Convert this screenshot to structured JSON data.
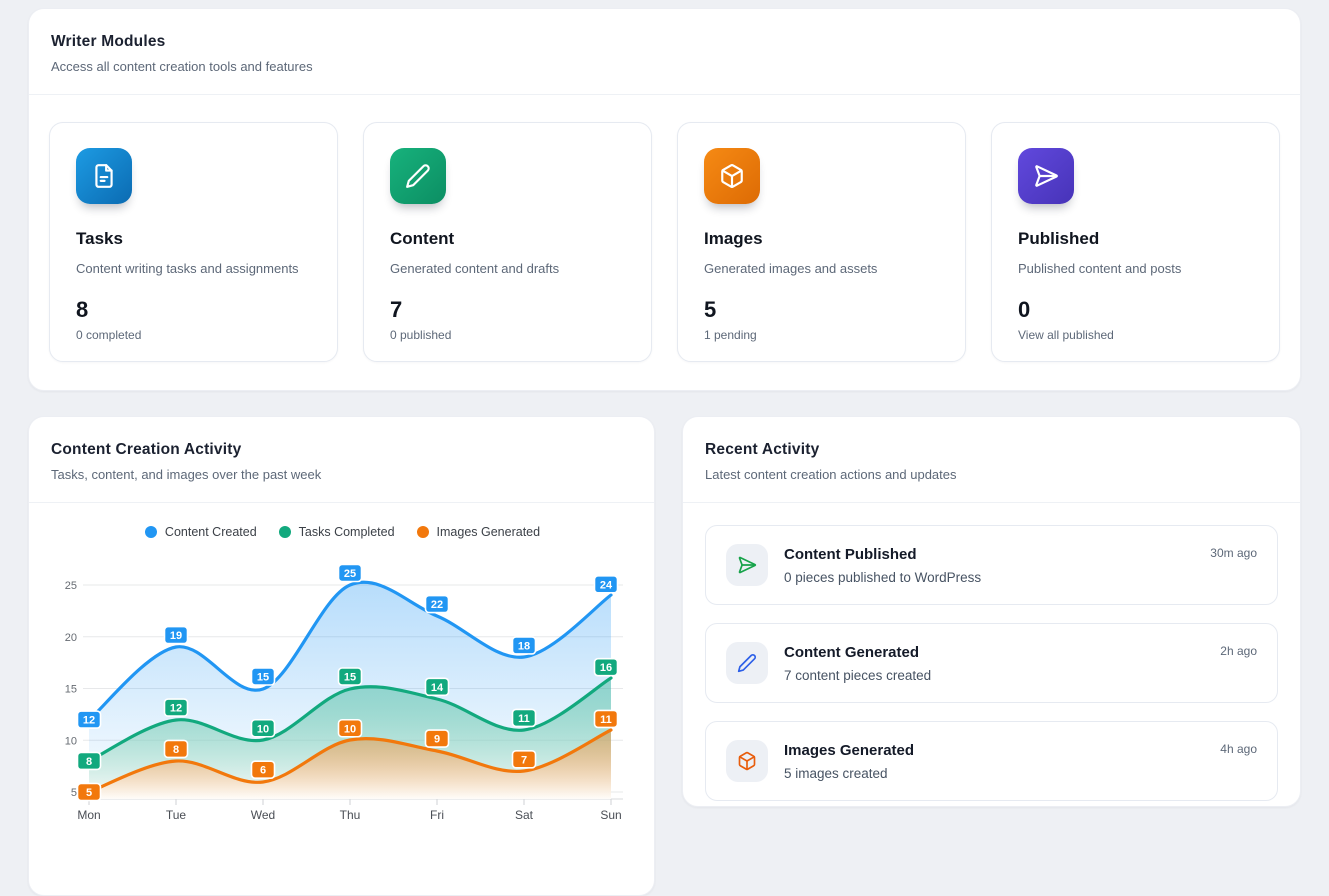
{
  "theme": {
    "page_bg": "#eef0f4",
    "card_bg": "#ffffff",
    "title_color": "#1b2130",
    "muted_color": "#5d6878"
  },
  "writer_modules": {
    "title": "Writer Modules",
    "subtitle": "Access all content creation tools and features",
    "cards": [
      {
        "icon": "file-text-icon",
        "gradient_from": "#1d9be3",
        "gradient_to": "#0b6bb2",
        "title": "Tasks",
        "description": "Content writing tasks and assignments",
        "value": "8",
        "footnote": "0 completed"
      },
      {
        "icon": "pencil-icon",
        "gradient_from": "#17b27c",
        "gradient_to": "#0c8e63",
        "title": "Content",
        "description": "Generated content and drafts",
        "value": "7",
        "footnote": "0 published"
      },
      {
        "icon": "cube-icon",
        "gradient_from": "#f68a14",
        "gradient_to": "#dd6b04",
        "title": "Images",
        "description": "Generated images and assets",
        "value": "5",
        "footnote": "1 pending"
      },
      {
        "icon": "send-icon",
        "gradient_from": "#6149dd",
        "gradient_to": "#4733b8",
        "title": "Published",
        "description": "Published content and posts",
        "value": "0",
        "footnote": "View all published"
      }
    ]
  },
  "content_activity": {
    "title": "Content Creation Activity",
    "subtitle": "Tasks, content, and images over the past week",
    "chart_data": {
      "type": "line",
      "x": [
        "Mon",
        "Tue",
        "Wed",
        "Thu",
        "Fri",
        "Sat",
        "Sun"
      ],
      "series": [
        {
          "name": "Content Created",
          "color": "#2196f3",
          "values": [
            12,
            19,
            15,
            25,
            22,
            18,
            24
          ]
        },
        {
          "name": "Tasks Completed",
          "color": "#12a97e",
          "values": [
            8,
            12,
            10,
            15,
            14,
            11,
            16
          ]
        },
        {
          "name": "Images Generated",
          "color": "#f2780c",
          "values": [
            5,
            8,
            6,
            10,
            9,
            7,
            11
          ]
        }
      ],
      "y_ticks": [
        5,
        10,
        15,
        20,
        25
      ],
      "ylim": [
        5,
        25
      ],
      "grid": true,
      "legend_position": "top",
      "smooth": true,
      "area": true,
      "point_labels": true
    }
  },
  "recent_activity": {
    "title": "Recent Activity",
    "subtitle": "Latest content creation actions and updates",
    "items": [
      {
        "icon": "send-icon",
        "icon_color": "#17a34a",
        "title": "Content Published",
        "description": "0 pieces published to WordPress",
        "time": "30m ago"
      },
      {
        "icon": "pencil-icon",
        "icon_color": "#2c5fe8",
        "title": "Content Generated",
        "description": "7 content pieces created",
        "time": "2h ago"
      },
      {
        "icon": "cube-icon",
        "icon_color": "#e85d0c",
        "title": "Images Generated",
        "description": "5 images created",
        "time": "4h ago"
      }
    ]
  }
}
